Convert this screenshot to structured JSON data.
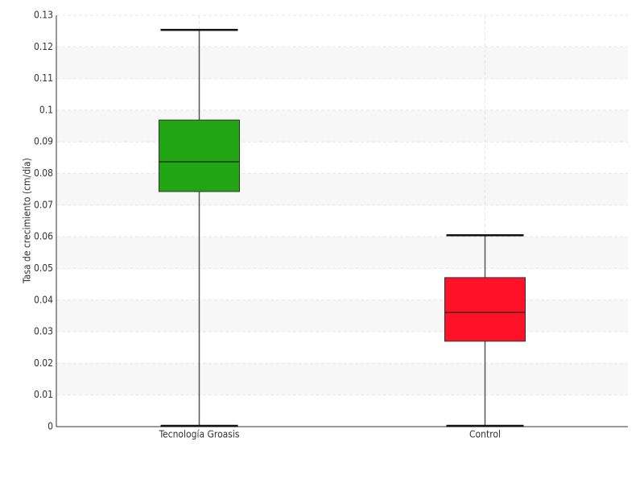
{
  "chart_data": {
    "type": "box",
    "ylabel": "Tasa de crecimiento (cm/día)",
    "categories": [
      "Tecnología Groasis",
      "Control"
    ],
    "boxes": [
      {
        "whislo": 0,
        "q1": 0.0743,
        "med": 0.0837,
        "q3": 0.0969,
        "whishi": 0.1254
      },
      {
        "whislo": 0,
        "q1": 0.027,
        "med": 0.0361,
        "q3": 0.0471,
        "whishi": 0.0605
      }
    ],
    "colors": [
      "#22a512",
      "#ff1128"
    ],
    "ylim": [
      0,
      0.13
    ],
    "yticks": [
      0,
      0.01,
      0.02,
      0.03,
      0.04,
      0.05,
      0.06,
      0.07,
      0.08,
      0.09,
      0.1,
      0.11,
      0.12,
      0.13
    ],
    "grid": true
  }
}
